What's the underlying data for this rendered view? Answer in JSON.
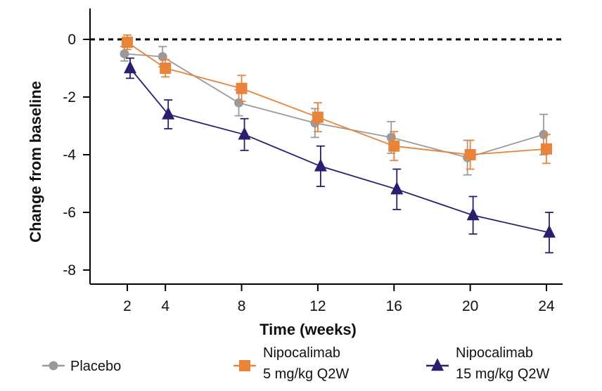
{
  "chart_data": {
    "type": "line",
    "xlabel": "Time (weeks)",
    "ylabel": "Change from baseline",
    "xlim": [
      0,
      25
    ],
    "ylim": [
      -8.5,
      1
    ],
    "xticks": [
      2,
      4,
      8,
      12,
      16,
      20,
      24
    ],
    "yticks": [
      0,
      -2,
      -4,
      -6,
      -8
    ],
    "reference_line": {
      "y": 0,
      "style": "dashed"
    },
    "legend_position": "bottom",
    "series": [
      {
        "key": "placebo",
        "name": "Placebo",
        "legend_lines": [
          "Placebo"
        ],
        "color": "#9a9a9a",
        "marker": "circle",
        "x": [
          2,
          4,
          8,
          12,
          16,
          20,
          24
        ],
        "y": [
          -0.5,
          -0.6,
          -2.2,
          -2.9,
          -3.4,
          -4.1,
          -3.3
        ],
        "error": [
          0.25,
          0.35,
          0.45,
          0.5,
          0.55,
          0.6,
          0.7
        ]
      },
      {
        "key": "nipo5",
        "name": "Nipocalimab 5 mg/kg Q2W",
        "legend_lines": [
          "Nipocalimab",
          "5 mg/kg Q2W"
        ],
        "color": "#e8833a",
        "marker": "square",
        "x": [
          2,
          4,
          8,
          12,
          16,
          20,
          24
        ],
        "y": [
          -0.1,
          -1.0,
          -1.7,
          -2.7,
          -3.7,
          -4.0,
          -3.8
        ],
        "error": [
          0.25,
          0.3,
          0.45,
          0.5,
          0.5,
          0.5,
          0.5
        ]
      },
      {
        "key": "nipo15",
        "name": "Nipocalimab 15 mg/kg Q2W",
        "legend_lines": [
          "Nipocalimab",
          "15 mg/kg Q2W"
        ],
        "color": "#2a1f6e",
        "marker": "triangle",
        "x": [
          2,
          4,
          8,
          12,
          16,
          20,
          24
        ],
        "y": [
          -1.0,
          -2.6,
          -3.3,
          -4.4,
          -5.2,
          -6.1,
          -6.7
        ],
        "error": [
          0.35,
          0.5,
          0.55,
          0.7,
          0.7,
          0.65,
          0.7
        ]
      }
    ]
  }
}
